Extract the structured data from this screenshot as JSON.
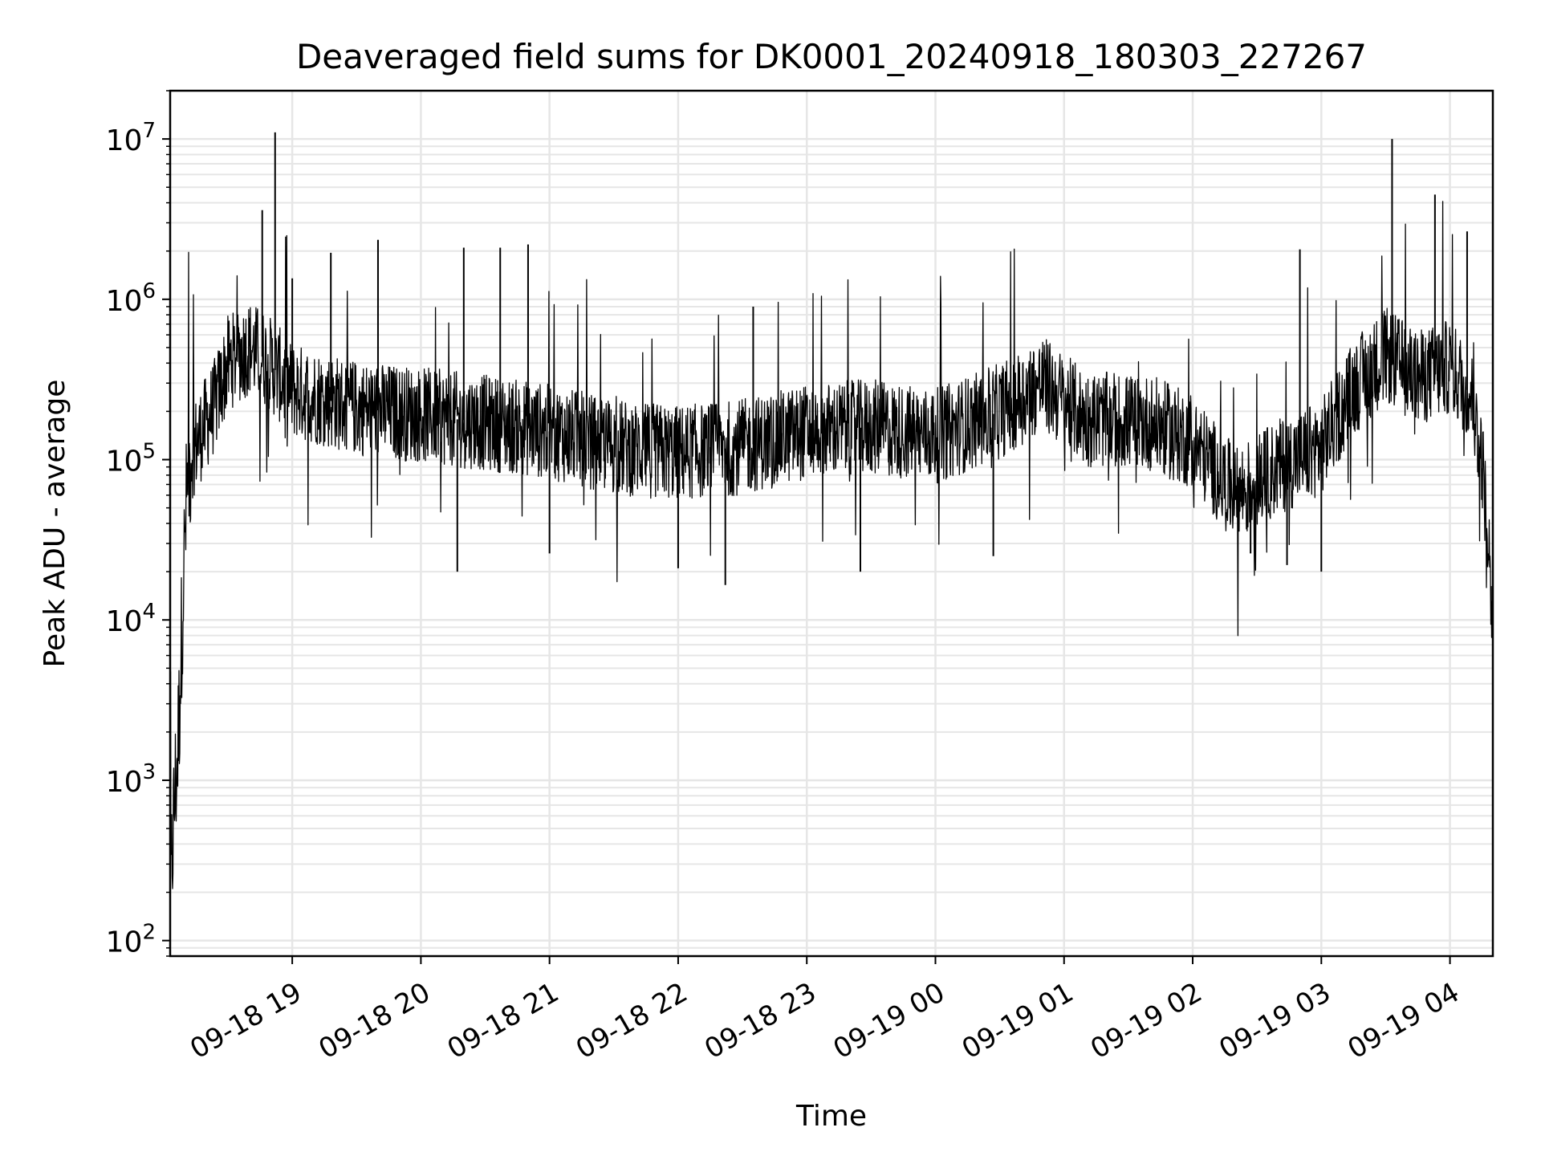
{
  "chart_data": {
    "type": "line",
    "title": "Deaveraged field sums for DK0001_20240918_180303_227267",
    "xlabel": "Time",
    "ylabel": "Peak ADU - average",
    "yscale": "log",
    "ylim": [
      80,
      20000000
    ],
    "xlim": [
      "2024-09-18 18:03:03",
      "2024-09-19 04:20:00"
    ],
    "grid": "on (major and minor)",
    "line_color": "#000000",
    "grid_color": "#e6e6e6",
    "y_ticks": [
      {
        "value": 100,
        "base": "10",
        "exp": "2"
      },
      {
        "value": 1000,
        "base": "10",
        "exp": "3"
      },
      {
        "value": 10000,
        "base": "10",
        "exp": "4"
      },
      {
        "value": 100000,
        "base": "10",
        "exp": "5"
      },
      {
        "value": 1000000,
        "base": "10",
        "exp": "6"
      },
      {
        "value": 10000000,
        "base": "10",
        "exp": "7"
      }
    ],
    "x_ticks": [
      {
        "time": "2024-09-18 19:00",
        "label": "09-18 19"
      },
      {
        "time": "2024-09-18 20:00",
        "label": "09-18 20"
      },
      {
        "time": "2024-09-18 21:00",
        "label": "09-18 21"
      },
      {
        "time": "2024-09-18 22:00",
        "label": "09-18 22"
      },
      {
        "time": "2024-09-18 23:00",
        "label": "09-18 23"
      },
      {
        "time": "2024-09-19 00:00",
        "label": "09-19 00"
      },
      {
        "time": "2024-09-19 01:00",
        "label": "09-19 01"
      },
      {
        "time": "2024-09-19 02:00",
        "label": "09-19 02"
      },
      {
        "time": "2024-09-19 03:00",
        "label": "09-19 03"
      },
      {
        "time": "2024-09-19 04:00",
        "label": "09-19 04"
      }
    ],
    "series": [
      {
        "name": "",
        "baseline": [
          {
            "t": "2024-09-18 18:03",
            "v": 180
          },
          {
            "t": "2024-09-18 18:05",
            "v": 700
          },
          {
            "t": "2024-09-18 18:07",
            "v": 2000
          },
          {
            "t": "2024-09-18 18:09",
            "v": 15000
          },
          {
            "t": "2024-09-18 18:11",
            "v": 70000
          },
          {
            "t": "2024-09-18 18:13",
            "v": 110000
          },
          {
            "t": "2024-09-18 18:18",
            "v": 150000
          },
          {
            "t": "2024-09-18 18:24",
            "v": 220000
          },
          {
            "t": "2024-09-18 18:30",
            "v": 400000
          },
          {
            "t": "2024-09-18 18:40",
            "v": 500000
          },
          {
            "t": "2024-09-18 18:48",
            "v": 420000
          },
          {
            "t": "2024-09-18 19:00",
            "v": 270000
          },
          {
            "t": "2024-09-18 19:30",
            "v": 210000
          },
          {
            "t": "2024-09-18 20:00",
            "v": 190000
          },
          {
            "t": "2024-09-18 20:30",
            "v": 170000
          },
          {
            "t": "2024-09-18 21:00",
            "v": 150000
          },
          {
            "t": "2024-09-18 21:30",
            "v": 120000
          },
          {
            "t": "2024-09-18 22:00",
            "v": 110000
          },
          {
            "t": "2024-09-18 22:30",
            "v": 120000
          },
          {
            "t": "2024-09-18 23:00",
            "v": 150000
          },
          {
            "t": "2024-09-18 23:30",
            "v": 160000
          },
          {
            "t": "2024-09-19 00:00",
            "v": 140000
          },
          {
            "t": "2024-09-19 00:30",
            "v": 200000
          },
          {
            "t": "2024-09-19 00:50",
            "v": 300000
          },
          {
            "t": "2024-09-19 01:10",
            "v": 180000
          },
          {
            "t": "2024-09-19 01:40",
            "v": 170000
          },
          {
            "t": "2024-09-19 02:00",
            "v": 130000
          },
          {
            "t": "2024-09-19 02:20",
            "v": 60000
          },
          {
            "t": "2024-09-19 02:40",
            "v": 90000
          },
          {
            "t": "2024-09-19 03:00",
            "v": 120000
          },
          {
            "t": "2024-09-19 03:15",
            "v": 280000
          },
          {
            "t": "2024-09-19 03:30",
            "v": 450000
          },
          {
            "t": "2024-09-19 03:45",
            "v": 320000
          },
          {
            "t": "2024-09-19 04:00",
            "v": 380000
          },
          {
            "t": "2024-09-19 04:10",
            "v": 250000
          },
          {
            "t": "2024-09-19 04:15",
            "v": 100000
          },
          {
            "t": "2024-09-19 04:18",
            "v": 30000
          },
          {
            "t": "2024-09-19 04:20",
            "v": 9000
          }
        ],
        "spikes": [
          {
            "t": "2024-09-18 18:46",
            "v": 3600000
          },
          {
            "t": "2024-09-18 18:52",
            "v": 11000000
          },
          {
            "t": "2024-09-18 19:00",
            "v": 1350000
          },
          {
            "t": "2024-09-18 19:18",
            "v": 1950000
          },
          {
            "t": "2024-09-18 19:40",
            "v": 2350000
          },
          {
            "t": "2024-09-18 20:20",
            "v": 2100000
          },
          {
            "t": "2024-09-18 20:37",
            "v": 2100000
          },
          {
            "t": "2024-09-18 20:50",
            "v": 2200000
          },
          {
            "t": "2024-09-18 22:35",
            "v": 900000
          },
          {
            "t": "2024-09-19 02:50",
            "v": 2050000
          },
          {
            "t": "2024-09-19 03:33",
            "v": 10000000
          },
          {
            "t": "2024-09-19 03:53",
            "v": 4500000
          },
          {
            "t": "2024-09-19 04:08",
            "v": 2650000
          }
        ],
        "dips": [
          {
            "t": "2024-09-18 20:17",
            "v": 20000
          },
          {
            "t": "2024-09-18 21:00",
            "v": 26000
          },
          {
            "t": "2024-09-18 22:00",
            "v": 21000
          },
          {
            "t": "2024-09-18 22:22",
            "v": 16500
          },
          {
            "t": "2024-09-18 23:25",
            "v": 20000
          },
          {
            "t": "2024-09-19 00:27",
            "v": 25000
          },
          {
            "t": "2024-09-19 02:27",
            "v": 26000
          },
          {
            "t": "2024-09-19 02:44",
            "v": 22000
          },
          {
            "t": "2024-09-19 03:00",
            "v": 20000
          }
        ]
      }
    ]
  }
}
